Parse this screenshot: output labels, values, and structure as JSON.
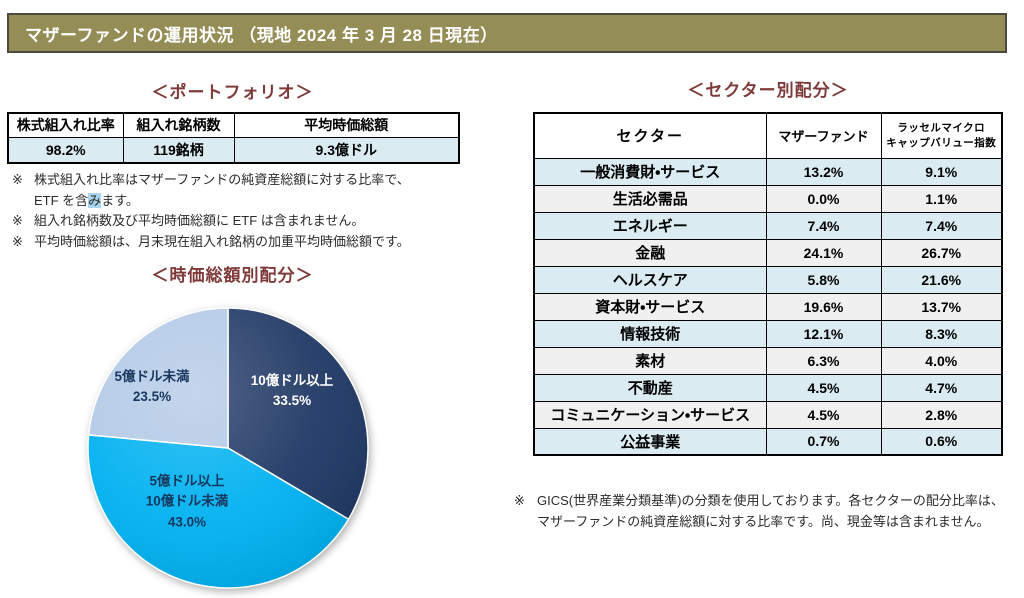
{
  "header": {
    "title": "マザーファンドの運用状況 （現地 2024 年 3 月 28 日現在）"
  },
  "portfolio": {
    "title": "＜ポートフォリオ＞",
    "col1": "株式組入れ比率",
    "col2": "組入れ銘柄数",
    "col3": "平均時価総額",
    "val1": "98.2%",
    "val2": "119銘柄",
    "val3": "9.3億ドル",
    "note_marker": "※",
    "note1_line1": "株式組入れ比率はマザーファンドの純資産総額に対する比率で、",
    "note1_line2_pre": "ETF を含",
    "note1_line2_hl": "み",
    "note1_line2_post": "ます。",
    "note2": "組入れ銘柄数及び平均時価総額に ETF は含まれません。",
    "note3": "平均時価総額は、月末現在組入れ銘柄の加重平均時価総額です。"
  },
  "chart_data": {
    "type": "pie",
    "title": "＜時価総額別配分＞",
    "labels": [
      "10億ドル以上",
      "5億ドル以上10億ドル未満",
      "5億ドル未満"
    ],
    "values": [
      33.5,
      43.0,
      23.5
    ],
    "colors": [
      "#1F3864",
      "#00B1F0",
      "#B3C9E6"
    ],
    "start_angle_deg": -90,
    "direction": "clockwise",
    "stroke_color": "#FFFFFF",
    "slice_labels": [
      {
        "lines": [
          "10億ドル以上",
          "33.5%"
        ]
      },
      {
        "lines": [
          "5億ドル以上",
          "10億ドル未満",
          "43.0%"
        ]
      },
      {
        "lines": [
          "5億ドル未満",
          "23.5%"
        ]
      }
    ]
  },
  "sector": {
    "title": "＜セクター別配分＞",
    "col_sector": "セクター",
    "col_fund": "マザーファンド",
    "col_index_line1": "ラッセルマイクロ",
    "col_index_line2": "キャップバリュー指数",
    "rows": [
      {
        "name": "一般消費財・サービス",
        "fund": "13.2%",
        "index": "9.1%"
      },
      {
        "name": "生活必需品",
        "fund": "0.0%",
        "index": "1.1%"
      },
      {
        "name": "エネルギー",
        "fund": "7.4%",
        "index": "7.4%"
      },
      {
        "name": "金融",
        "fund": "24.1%",
        "index": "26.7%"
      },
      {
        "name": "ヘルスケア",
        "fund": "5.8%",
        "index": "21.6%"
      },
      {
        "name": "資本財・サービス",
        "fund": "19.6%",
        "index": "13.7%"
      },
      {
        "name": "情報技術",
        "fund": "12.1%",
        "index": "8.3%"
      },
      {
        "name": "素材",
        "fund": "6.3%",
        "index": "4.0%"
      },
      {
        "name": "不動産",
        "fund": "4.5%",
        "index": "4.7%"
      },
      {
        "name": "コミュニケーション・サービス",
        "fund": "4.5%",
        "index": "2.8%"
      },
      {
        "name": "公益事業",
        "fund": "0.7%",
        "index": "0.6%"
      }
    ],
    "footnote_marker": "※",
    "footnote": "GICS(世界産業分類基準)の分類を使用しております。各セクターの配分比率は、マザーファンドの純資産総額に対する比率です。尚、現金等は含まれません。"
  }
}
